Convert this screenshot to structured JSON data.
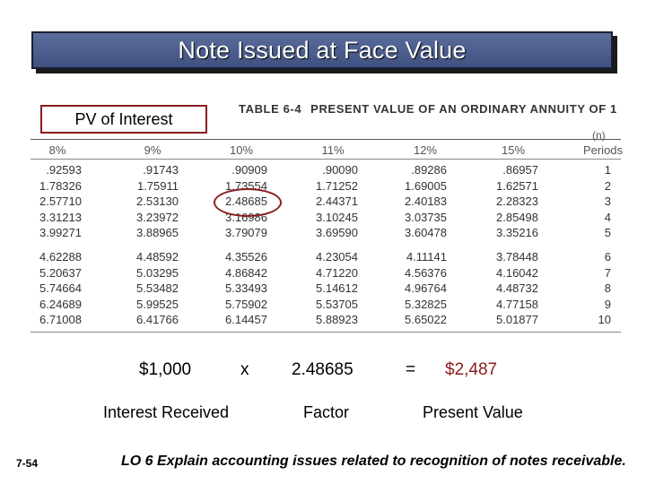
{
  "title": "Note Issued at Face Value",
  "pv_label": "PV of Interest",
  "table": {
    "label": "TABLE 6-4",
    "heading": "PRESENT VALUE OF AN ORDINARY ANNUITY OF 1",
    "n_label": "(n)",
    "columns": [
      "8%",
      "9%",
      "10%",
      "11%",
      "12%",
      "15%",
      "Periods"
    ],
    "rows": [
      [
        ".92593",
        ".91743",
        ".90909",
        ".90090",
        ".89286",
        ".86957",
        "1"
      ],
      [
        "1.78326",
        "1.75911",
        "1.73554",
        "1.71252",
        "1.69005",
        "1.62571",
        "2"
      ],
      [
        "2.57710",
        "2.53130",
        "2.48685",
        "2.44371",
        "2.40183",
        "2.28323",
        "3"
      ],
      [
        "3.31213",
        "3.23972",
        "3.16986",
        "3.10245",
        "3.03735",
        "2.85498",
        "4"
      ],
      [
        "3.99271",
        "3.88965",
        "3.79079",
        "3.69590",
        "3.60478",
        "3.35216",
        "5"
      ],
      [
        "4.62288",
        "4.48592",
        "4.35526",
        "4.23054",
        "4.11141",
        "3.78448",
        "6"
      ],
      [
        "5.20637",
        "5.03295",
        "4.86842",
        "4.71220",
        "4.56376",
        "4.16042",
        "7"
      ],
      [
        "5.74664",
        "5.53482",
        "5.33493",
        "5.14612",
        "4.96764",
        "4.48732",
        "8"
      ],
      [
        "6.24689",
        "5.99525",
        "5.75902",
        "5.53705",
        "5.32825",
        "4.77158",
        "9"
      ],
      [
        "6.71008",
        "6.41766",
        "6.14457",
        "5.88923",
        "5.65022",
        "5.01877",
        "10"
      ]
    ]
  },
  "equation": {
    "amount": "$1,000",
    "times": "x",
    "factor": "2.48685",
    "equals": "=",
    "result": "$2,487"
  },
  "labels": {
    "amount": "Interest Received",
    "factor": "Factor",
    "result": "Present Value"
  },
  "slide_number": "7-54",
  "footer": "LO 6  Explain accounting issues related to recognition of notes receivable."
}
